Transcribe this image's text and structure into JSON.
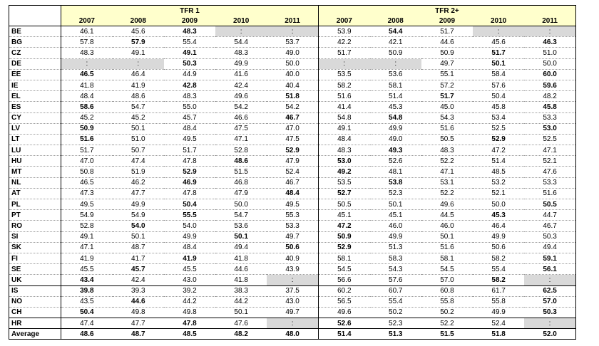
{
  "groups": [
    "TFR 1",
    "TFR 2+"
  ],
  "years": [
    "2007",
    "2008",
    "2009",
    "2010",
    "2011"
  ],
  "rows": [
    {
      "c": "BE",
      "v": [
        "46.1",
        "45.6",
        "48.3",
        ":",
        ":",
        "53.9",
        "54.4",
        "51.7",
        ":",
        ":"
      ],
      "b": [
        2,
        6
      ],
      "na": [
        3,
        4,
        8,
        9
      ]
    },
    {
      "c": "BG",
      "v": [
        "57.8",
        "57.9",
        "55.4",
        "54.4",
        "53.7",
        "42.2",
        "42.1",
        "44.6",
        "45.6",
        "46.3"
      ],
      "b": [
        1,
        9
      ],
      "na": []
    },
    {
      "c": "CZ",
      "v": [
        "48.3",
        "49.1",
        "49.1",
        "48.3",
        "49.0",
        "51.7",
        "50.9",
        "50.9",
        "51.7",
        "51.0"
      ],
      "b": [
        2,
        8
      ],
      "na": []
    },
    {
      "c": "DE",
      "v": [
        ":",
        ":",
        "50.3",
        "49.9",
        "50.0",
        ":",
        ":",
        "49.7",
        "50.1",
        "50.0"
      ],
      "b": [
        2,
        8
      ],
      "na": [
        0,
        1,
        5,
        6
      ]
    },
    {
      "c": "EE",
      "v": [
        "46.5",
        "46.4",
        "44.9",
        "41.6",
        "40.0",
        "53.5",
        "53.6",
        "55.1",
        "58.4",
        "60.0"
      ],
      "b": [
        0,
        9
      ],
      "na": []
    },
    {
      "c": "IE",
      "v": [
        "41.8",
        "41.9",
        "42.8",
        "42.4",
        "40.4",
        "58.2",
        "58.1",
        "57.2",
        "57.6",
        "59.6"
      ],
      "b": [
        2,
        9
      ],
      "na": []
    },
    {
      "c": "EL",
      "v": [
        "48.4",
        "48.6",
        "48.3",
        "49.6",
        "51.8",
        "51.6",
        "51.4",
        "51.7",
        "50.4",
        "48.2"
      ],
      "b": [
        4,
        7
      ],
      "na": []
    },
    {
      "c": "ES",
      "v": [
        "58.6",
        "54.7",
        "55.0",
        "54.2",
        "54.2",
        "41.4",
        "45.3",
        "45.0",
        "45.8",
        "45.8"
      ],
      "b": [
        0,
        9
      ],
      "na": []
    },
    {
      "c": "CY",
      "v": [
        "45.2",
        "45.2",
        "45.7",
        "46.6",
        "46.7",
        "54.8",
        "54.8",
        "54.3",
        "53.4",
        "53.3"
      ],
      "b": [
        4,
        6
      ],
      "na": []
    },
    {
      "c": "LV",
      "v": [
        "50.9",
        "50.1",
        "48.4",
        "47.5",
        "47.0",
        "49.1",
        "49.9",
        "51.6",
        "52.5",
        "53.0"
      ],
      "b": [
        0,
        9
      ],
      "na": []
    },
    {
      "c": "LT",
      "v": [
        "51.6",
        "51.0",
        "49.5",
        "47.1",
        "47.5",
        "48.4",
        "49.0",
        "50.5",
        "52.9",
        "52.5"
      ],
      "b": [
        0,
        8
      ],
      "na": []
    },
    {
      "c": "LU",
      "v": [
        "51.7",
        "50.7",
        "51.7",
        "52.8",
        "52.9",
        "48.3",
        "49.3",
        "48.3",
        "47.2",
        "47.1"
      ],
      "b": [
        4,
        6
      ],
      "na": []
    },
    {
      "c": "HU",
      "v": [
        "47.0",
        "47.4",
        "47.8",
        "48.6",
        "47.9",
        "53.0",
        "52.6",
        "52.2",
        "51.4",
        "52.1"
      ],
      "b": [
        3,
        5
      ],
      "na": []
    },
    {
      "c": "MT",
      "v": [
        "50.8",
        "51.9",
        "52.9",
        "51.5",
        "52.4",
        "49.2",
        "48.1",
        "47.1",
        "48.5",
        "47.6"
      ],
      "b": [
        2,
        5
      ],
      "na": []
    },
    {
      "c": "NL",
      "v": [
        "46.5",
        "46.2",
        "46.9",
        "46.8",
        "46.7",
        "53.5",
        "53.8",
        "53.1",
        "53.2",
        "53.3"
      ],
      "b": [
        2,
        6
      ],
      "na": []
    },
    {
      "c": "AT",
      "v": [
        "47.3",
        "47.7",
        "47.8",
        "47.9",
        "48.4",
        "52.7",
        "52.3",
        "52.2",
        "52.1",
        "51.6"
      ],
      "b": [
        4,
        5
      ],
      "na": []
    },
    {
      "c": "PL",
      "v": [
        "49.5",
        "49.9",
        "50.4",
        "50.0",
        "49.5",
        "50.5",
        "50.1",
        "49.6",
        "50.0",
        "50.5"
      ],
      "b": [
        2,
        9
      ],
      "na": []
    },
    {
      "c": "PT",
      "v": [
        "54.9",
        "54.9",
        "55.5",
        "54.7",
        "55.3",
        "45.1",
        "45.1",
        "44.5",
        "45.3",
        "44.7"
      ],
      "b": [
        2,
        8
      ],
      "na": []
    },
    {
      "c": "RO",
      "v": [
        "52.8",
        "54.0",
        "54.0",
        "53.6",
        "53.3",
        "47.2",
        "46.0",
        "46.0",
        "46.4",
        "46.7"
      ],
      "b": [
        1,
        5
      ],
      "na": []
    },
    {
      "c": "SI",
      "v": [
        "49.1",
        "50.1",
        "49.9",
        "50.1",
        "49.7",
        "50.9",
        "49.9",
        "50.1",
        "49.9",
        "50.3"
      ],
      "b": [
        3,
        5
      ],
      "na": []
    },
    {
      "c": "SK",
      "v": [
        "47.1",
        "48.7",
        "48.4",
        "49.4",
        "50.6",
        "52.9",
        "51.3",
        "51.6",
        "50.6",
        "49.4"
      ],
      "b": [
        4,
        5
      ],
      "na": []
    },
    {
      "c": "FI",
      "v": [
        "41.9",
        "41.7",
        "41.9",
        "41.8",
        "40.9",
        "58.1",
        "58.3",
        "58.1",
        "58.2",
        "59.1"
      ],
      "b": [
        2,
        9
      ],
      "na": []
    },
    {
      "c": "SE",
      "v": [
        "45.5",
        "45.7",
        "45.5",
        "44.6",
        "43.9",
        "54.5",
        "54.3",
        "54.5",
        "55.4",
        "56.1"
      ],
      "b": [
        1,
        9
      ],
      "na": []
    },
    {
      "c": "UK",
      "v": [
        "43.4",
        "42.4",
        "43.0",
        "41.8",
        ":",
        "56.6",
        "57.6",
        "57.0",
        "58.2",
        ":"
      ],
      "b": [
        0,
        8
      ],
      "na": [
        4,
        9
      ]
    },
    {
      "c": "IS",
      "v": [
        "39.8",
        "39.3",
        "39.2",
        "38.3",
        "37.5",
        "60.2",
        "60.7",
        "60.8",
        "61.7",
        "62.5"
      ],
      "b": [
        0,
        9
      ],
      "na": [],
      "grpStart": true
    },
    {
      "c": "NO",
      "v": [
        "43.5",
        "44.6",
        "44.2",
        "44.2",
        "43.0",
        "56.5",
        "55.4",
        "55.8",
        "55.8",
        "57.0"
      ],
      "b": [
        1,
        9
      ],
      "na": []
    },
    {
      "c": "CH",
      "v": [
        "50.4",
        "49.8",
        "49.8",
        "50.1",
        "49.7",
        "49.6",
        "50.2",
        "50.2",
        "49.9",
        "50.3"
      ],
      "b": [
        0,
        9
      ],
      "na": []
    },
    {
      "c": "HR",
      "v": [
        "47.4",
        "47.7",
        "47.8",
        "47.6",
        ":",
        "52.6",
        "52.3",
        "52.2",
        "52.4",
        ":"
      ],
      "b": [
        2,
        5
      ],
      "na": [
        4,
        9
      ],
      "grpStart": true
    },
    {
      "c": "Average",
      "v": [
        "48.6",
        "48.7",
        "48.5",
        "48.2",
        "48.0",
        "51.4",
        "51.3",
        "51.5",
        "51.8",
        "52.0"
      ],
      "b": [
        0,
        1,
        2,
        3,
        4,
        5,
        6,
        7,
        8,
        9
      ],
      "na": [],
      "avg": true
    }
  ]
}
